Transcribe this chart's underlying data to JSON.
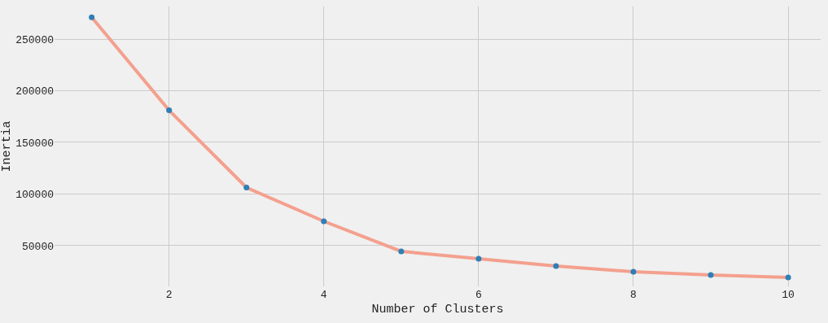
{
  "chart_data": {
    "type": "line",
    "xlabel": "Number of Clusters",
    "ylabel": "Inertia",
    "x": [
      1,
      2,
      3,
      4,
      5,
      6,
      7,
      8,
      9,
      10
    ],
    "series": [
      {
        "color": "#f4a08e",
        "marker": "none",
        "values": [
          271000,
          181000,
          106300,
          73600,
          44500,
          37400,
          30300,
          24800,
          21700,
          19300
        ]
      },
      {
        "type": "scatter",
        "color": "#2e7fb8",
        "marker": "circle",
        "values": [
          271000,
          181000,
          106300,
          73600,
          44500,
          37400,
          30300,
          24800,
          21700,
          19300
        ]
      }
    ],
    "xlim": [
      0.52,
      10.42
    ],
    "ylim": [
      10600,
      281500
    ],
    "xticks": [
      2,
      4,
      6,
      8,
      10
    ],
    "yticks": [
      50000,
      100000,
      150000,
      200000,
      250000
    ],
    "grid": true
  }
}
